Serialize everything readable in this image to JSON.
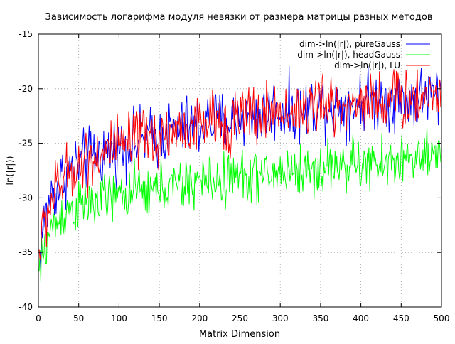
{
  "chart_data": {
    "type": "line",
    "title": "Зависимость логарифма модуля невязки от размера матрицы разных методов",
    "xlabel": "Matrix Dimension",
    "ylabel": "ln(|r|))",
    "xlim": [
      0,
      500
    ],
    "ylim": [
      -40,
      -15
    ],
    "xticks": [
      0,
      50,
      100,
      150,
      200,
      250,
      300,
      350,
      400,
      450,
      500
    ],
    "yticks": [
      -40,
      -35,
      -30,
      -25,
      -20,
      -15
    ],
    "grid": true,
    "legend_position": "top-right",
    "series": [
      {
        "name": "dim->ln(|r|), pureGauss",
        "color": "#0000ff",
        "x": [
          1,
          5,
          10,
          15,
          20,
          25,
          30,
          40,
          50,
          60,
          70,
          80,
          90,
          100,
          110,
          120,
          130,
          140,
          150,
          160,
          170,
          180,
          190,
          200,
          210,
          220,
          230,
          240,
          250,
          260,
          270,
          280,
          290,
          300,
          310,
          320,
          330,
          340,
          350,
          360,
          370,
          380,
          390,
          400,
          410,
          420,
          430,
          440,
          450,
          460,
          470,
          480,
          490,
          500
        ],
        "y": [
          -35.5,
          -33.0,
          -31.5,
          -30.0,
          -29.5,
          -29.0,
          -28.0,
          -27.5,
          -27.0,
          -26.5,
          -26.0,
          -26.0,
          -25.5,
          -25.5,
          -25.0,
          -25.0,
          -24.5,
          -24.5,
          -24.5,
          -24.0,
          -24.0,
          -23.5,
          -23.5,
          -23.5,
          -23.0,
          -23.0,
          -23.0,
          -23.0,
          -22.5,
          -22.5,
          -22.5,
          -22.5,
          -22.0,
          -22.0,
          -22.0,
          -22.0,
          -22.0,
          -21.5,
          -21.5,
          -21.5,
          -21.5,
          -21.5,
          -21.5,
          -21.0,
          -21.0,
          -21.0,
          -21.0,
          -21.0,
          -21.0,
          -21.0,
          -21.0,
          -20.5,
          -20.5,
          -20.5
        ],
        "noise": 1.4
      },
      {
        "name": "dim->ln(|r|), headGauss",
        "color": "#00ff00",
        "x": [
          1,
          5,
          10,
          15,
          20,
          25,
          30,
          40,
          50,
          60,
          70,
          80,
          90,
          100,
          110,
          120,
          130,
          140,
          150,
          160,
          170,
          180,
          190,
          200,
          210,
          220,
          230,
          240,
          250,
          260,
          270,
          280,
          290,
          300,
          310,
          320,
          330,
          340,
          350,
          360,
          370,
          380,
          390,
          400,
          410,
          420,
          430,
          440,
          450,
          460,
          470,
          480,
          490,
          500
        ],
        "y": [
          -37.0,
          -35.5,
          -34.0,
          -33.0,
          -32.5,
          -32.0,
          -31.5,
          -31.0,
          -31.0,
          -30.5,
          -30.5,
          -30.0,
          -30.0,
          -30.0,
          -29.5,
          -29.5,
          -29.5,
          -29.5,
          -29.0,
          -29.0,
          -29.0,
          -29.0,
          -28.5,
          -28.5,
          -28.5,
          -28.5,
          -28.5,
          -28.0,
          -28.0,
          -28.0,
          -28.0,
          -28.0,
          -28.0,
          -27.5,
          -27.5,
          -27.5,
          -27.5,
          -27.5,
          -27.5,
          -27.0,
          -27.0,
          -27.0,
          -27.0,
          -27.0,
          -27.0,
          -27.0,
          -27.0,
          -26.5,
          -26.5,
          -26.5,
          -26.5,
          -26.5,
          -26.5,
          -26.5
        ],
        "noise": 1.2
      },
      {
        "name": "dim->ln(|r|), LU",
        "color": "#ff0000",
        "x": [
          1,
          5,
          10,
          15,
          20,
          25,
          30,
          40,
          50,
          60,
          70,
          80,
          90,
          100,
          110,
          120,
          130,
          140,
          150,
          160,
          170,
          180,
          190,
          200,
          210,
          220,
          230,
          240,
          250,
          260,
          270,
          280,
          290,
          300,
          310,
          320,
          330,
          340,
          350,
          360,
          370,
          380,
          390,
          400,
          410,
          420,
          430,
          440,
          450,
          460,
          470,
          480,
          490,
          500
        ],
        "y": [
          -35.0,
          -33.0,
          -31.5,
          -30.5,
          -29.5,
          -29.0,
          -28.5,
          -27.5,
          -27.0,
          -26.5,
          -26.0,
          -26.0,
          -25.5,
          -25.5,
          -25.0,
          -25.0,
          -24.5,
          -24.5,
          -24.5,
          -24.0,
          -24.0,
          -23.5,
          -23.5,
          -23.5,
          -23.0,
          -23.0,
          -23.0,
          -23.0,
          -22.5,
          -22.5,
          -22.5,
          -22.5,
          -22.0,
          -22.0,
          -22.0,
          -22.0,
          -22.0,
          -21.5,
          -21.5,
          -21.5,
          -21.5,
          -21.5,
          -21.5,
          -21.0,
          -21.0,
          -21.0,
          -21.0,
          -21.0,
          -21.0,
          -21.0,
          -21.0,
          -20.5,
          -20.5,
          -20.5
        ],
        "noise": 1.4
      }
    ]
  }
}
